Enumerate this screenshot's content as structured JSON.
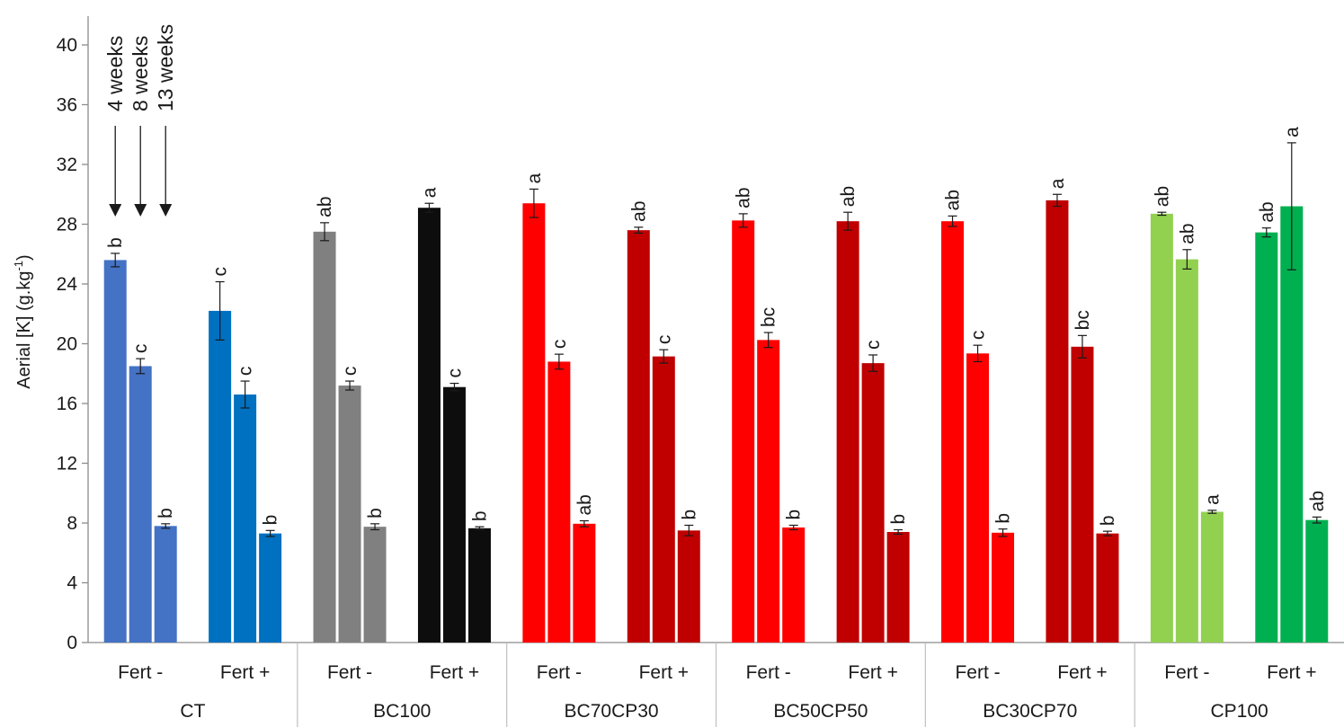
{
  "chart_data": {
    "type": "bar",
    "title": "",
    "ylabel": {
      "main": "Aerial [K] (g.kg",
      "sup": "-1",
      "tail": ")"
    },
    "xlabel": "",
    "ylim": [
      0,
      40
    ],
    "yticks": [
      0,
      4,
      8,
      12,
      16,
      20,
      24,
      28,
      32,
      36,
      40
    ],
    "grid": false,
    "legend": "none",
    "annotations": [
      "4 weeks",
      "8 weeks",
      "13 weeks"
    ],
    "groups": [
      {
        "name": "CT",
        "subgroups": [
          {
            "label": "Fert -",
            "color": "#4472C4",
            "bars": [
              {
                "value": 25.6,
                "error": 0.45,
                "sig": "b"
              },
              {
                "value": 18.5,
                "error": 0.5,
                "sig": "c"
              },
              {
                "value": 7.8,
                "error": 0.15,
                "sig": "b"
              }
            ]
          },
          {
            "label": "Fert +",
            "color": "#0070C0",
            "bars": [
              {
                "value": 22.2,
                "error": 1.95,
                "sig": "c"
              },
              {
                "value": 16.6,
                "error": 0.9,
                "sig": "c"
              },
              {
                "value": 7.3,
                "error": 0.2,
                "sig": "b"
              }
            ]
          }
        ]
      },
      {
        "name": "BC100",
        "subgroups": [
          {
            "label": "Fert -",
            "color": "#808080",
            "bars": [
              {
                "value": 27.5,
                "error": 0.6,
                "sig": "ab"
              },
              {
                "value": 17.2,
                "error": 0.3,
                "sig": "c"
              },
              {
                "value": 7.75,
                "error": 0.2,
                "sig": "b"
              }
            ]
          },
          {
            "label": "Fert +",
            "color": "#0D0D0D",
            "bars": [
              {
                "value": 29.1,
                "error": 0.3,
                "sig": "a"
              },
              {
                "value": 17.1,
                "error": 0.25,
                "sig": "c"
              },
              {
                "value": 7.65,
                "error": 0.1,
                "sig": "b"
              }
            ]
          }
        ]
      },
      {
        "name": "BC70CP30",
        "subgroups": [
          {
            "label": "Fert -",
            "color": "#FF0000",
            "bars": [
              {
                "value": 29.4,
                "error": 0.95,
                "sig": "a"
              },
              {
                "value": 18.8,
                "error": 0.5,
                "sig": "c"
              },
              {
                "value": 7.95,
                "error": 0.2,
                "sig": "ab"
              }
            ]
          },
          {
            "label": "Fert +",
            "color": "#C00000",
            "bars": [
              {
                "value": 27.6,
                "error": 0.2,
                "sig": "ab"
              },
              {
                "value": 19.15,
                "error": 0.45,
                "sig": "c"
              },
              {
                "value": 7.5,
                "error": 0.35,
                "sig": "b"
              }
            ]
          }
        ]
      },
      {
        "name": "BC50CP50",
        "subgroups": [
          {
            "label": "Fert -",
            "color": "#FF0000",
            "bars": [
              {
                "value": 28.25,
                "error": 0.45,
                "sig": "ab"
              },
              {
                "value": 20.25,
                "error": 0.5,
                "sig": "bc"
              },
              {
                "value": 7.7,
                "error": 0.15,
                "sig": "b"
              }
            ]
          },
          {
            "label": "Fert +",
            "color": "#C00000",
            "bars": [
              {
                "value": 28.2,
                "error": 0.6,
                "sig": "ab"
              },
              {
                "value": 18.7,
                "error": 0.55,
                "sig": "c"
              },
              {
                "value": 7.4,
                "error": 0.15,
                "sig": "b"
              }
            ]
          }
        ]
      },
      {
        "name": "BC30CP70",
        "subgroups": [
          {
            "label": "Fert -",
            "color": "#FF0000",
            "bars": [
              {
                "value": 28.2,
                "error": 0.35,
                "sig": "ab"
              },
              {
                "value": 19.35,
                "error": 0.55,
                "sig": "c"
              },
              {
                "value": 7.35,
                "error": 0.25,
                "sig": "b"
              }
            ]
          },
          {
            "label": "Fert +",
            "color": "#C00000",
            "bars": [
              {
                "value": 29.6,
                "error": 0.4,
                "sig": "a"
              },
              {
                "value": 19.8,
                "error": 0.75,
                "sig": "bc"
              },
              {
                "value": 7.3,
                "error": 0.15,
                "sig": "b"
              }
            ]
          }
        ]
      },
      {
        "name": "CP100",
        "subgroups": [
          {
            "label": "Fert -",
            "color": "#92D050",
            "bars": [
              {
                "value": 28.7,
                "error": 0.1,
                "sig": "ab"
              },
              {
                "value": 25.65,
                "error": 0.65,
                "sig": "ab"
              },
              {
                "value": 8.75,
                "error": 0.1,
                "sig": "a"
              }
            ]
          },
          {
            "label": "Fert +",
            "color": "#00B050",
            "bars": [
              {
                "value": 27.45,
                "error": 0.3,
                "sig": "ab"
              },
              {
                "value": 29.2,
                "error": 4.25,
                "sig": "a"
              },
              {
                "value": 8.2,
                "error": 0.2,
                "sig": "ab"
              }
            ]
          }
        ]
      }
    ]
  }
}
